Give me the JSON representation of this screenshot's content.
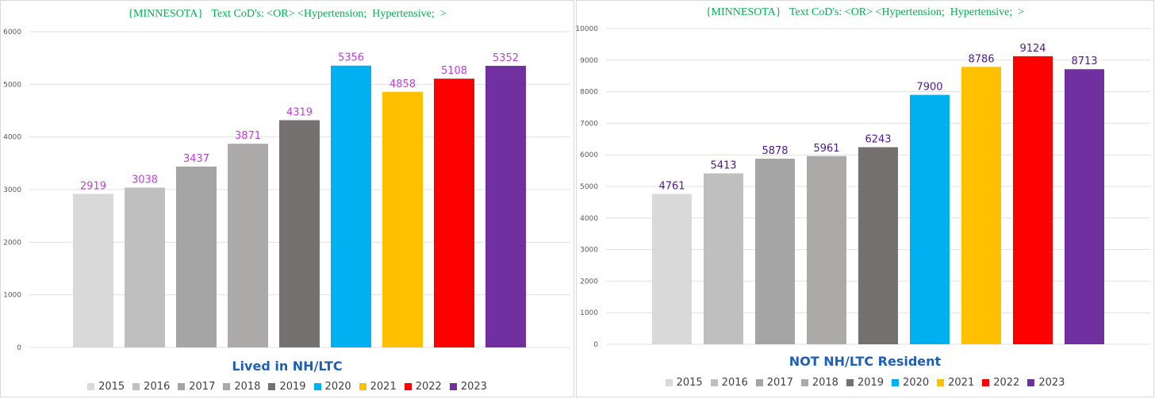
{
  "chart_data": [
    {
      "type": "bar",
      "title": "{MINNESOTA}   Text CoD's: <OR> <Hypertension;  Hypertensive;  >",
      "subtitle": "Lived in NH/LTC",
      "categories": [
        "2015",
        "2016",
        "2017",
        "2018",
        "2019",
        "2020",
        "2021",
        "2022",
        "2023"
      ],
      "values": [
        2919,
        3038,
        3437,
        3871,
        4319,
        5356,
        4858,
        5108,
        5352
      ],
      "ylim": [
        0,
        6000
      ],
      "yticks": [
        "0",
        "1000",
        "2000",
        "3000",
        "4000",
        "5000",
        "6000"
      ],
      "label_color": "#bf3fdc",
      "grid": true,
      "legend_position": "bottom"
    },
    {
      "type": "bar",
      "title": "{MINNESOTA}   Text CoD's: <OR> <Hypertension;  Hypertensive;  >",
      "subtitle": "NOT NH/LTC Resident",
      "categories": [
        "2015",
        "2016",
        "2017",
        "2018",
        "2019",
        "2020",
        "2021",
        "2022",
        "2023"
      ],
      "values": [
        4761,
        5413,
        5878,
        5961,
        6243,
        7900,
        8786,
        9124,
        8713
      ],
      "ylim": [
        0,
        10000
      ],
      "yticks": [
        "0",
        "1000",
        "2000",
        "3000",
        "4000",
        "5000",
        "6000",
        "7000",
        "8000",
        "9000",
        "10000"
      ],
      "label_color": "#4b1a8c",
      "grid": true,
      "legend_position": "bottom"
    }
  ],
  "bar_colors": [
    "#d9d9d9",
    "#bfbfbf",
    "#a5a5a5",
    "#acaaa8",
    "#767171",
    "#00b0f0",
    "#ffc000",
    "#ff0000",
    "#7030a0"
  ]
}
